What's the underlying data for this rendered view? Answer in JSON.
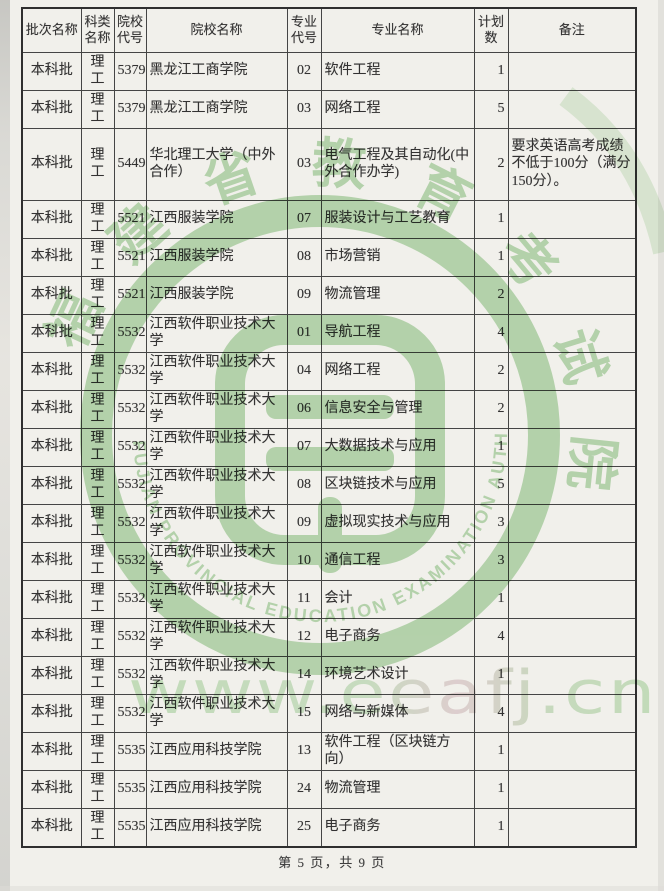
{
  "table": {
    "headers": [
      "批次名称",
      "科类名称",
      "院校代号",
      "院校名称",
      "专业代号",
      "专业名称",
      "计划数",
      "备注"
    ],
    "rows": [
      {
        "batch": "本科批",
        "category": "理工",
        "school_code": "5379",
        "school": "黑龙江工商学院",
        "major_code": "02",
        "major": "软件工程",
        "plan": "1",
        "note": ""
      },
      {
        "batch": "本科批",
        "category": "理工",
        "school_code": "5379",
        "school": "黑龙江工商学院",
        "major_code": "03",
        "major": "网络工程",
        "plan": "5",
        "note": ""
      },
      {
        "batch": "本科批",
        "category": "理工",
        "school_code": "5449",
        "school": "华北理工大学（中外合作）",
        "major_code": "03",
        "major": "电气工程及其自动化(中外合作办学)",
        "plan": "2",
        "note": "要求英语高考成绩不低于100分（满分150分）。"
      },
      {
        "batch": "本科批",
        "category": "理工",
        "school_code": "5521",
        "school": "江西服装学院",
        "major_code": "07",
        "major": "服装设计与工艺教育",
        "plan": "1",
        "note": ""
      },
      {
        "batch": "本科批",
        "category": "理工",
        "school_code": "5521",
        "school": "江西服装学院",
        "major_code": "08",
        "major": "市场营销",
        "plan": "1",
        "note": ""
      },
      {
        "batch": "本科批",
        "category": "理工",
        "school_code": "5521",
        "school": "江西服装学院",
        "major_code": "09",
        "major": "物流管理",
        "plan": "2",
        "note": ""
      },
      {
        "batch": "本科批",
        "category": "理工",
        "school_code": "5532",
        "school": "江西软件职业技术大学",
        "major_code": "01",
        "major": "导航工程",
        "plan": "4",
        "note": ""
      },
      {
        "batch": "本科批",
        "category": "理工",
        "school_code": "5532",
        "school": "江西软件职业技术大学",
        "major_code": "04",
        "major": "网络工程",
        "plan": "2",
        "note": ""
      },
      {
        "batch": "本科批",
        "category": "理工",
        "school_code": "5532",
        "school": "江西软件职业技术大学",
        "major_code": "06",
        "major": "信息安全与管理",
        "plan": "2",
        "note": ""
      },
      {
        "batch": "本科批",
        "category": "理工",
        "school_code": "5532",
        "school": "江西软件职业技术大学",
        "major_code": "07",
        "major": "大数据技术与应用",
        "plan": "1",
        "note": ""
      },
      {
        "batch": "本科批",
        "category": "理工",
        "school_code": "5532",
        "school": "江西软件职业技术大学",
        "major_code": "08",
        "major": "区块链技术与应用",
        "plan": "5",
        "note": ""
      },
      {
        "batch": "本科批",
        "category": "理工",
        "school_code": "5532",
        "school": "江西软件职业技术大学",
        "major_code": "09",
        "major": "虚拟现实技术与应用",
        "plan": "3",
        "note": ""
      },
      {
        "batch": "本科批",
        "category": "理工",
        "school_code": "5532",
        "school": "江西软件职业技术大学",
        "major_code": "10",
        "major": "通信工程",
        "plan": "3",
        "note": ""
      },
      {
        "batch": "本科批",
        "category": "理工",
        "school_code": "5532",
        "school": "江西软件职业技术大学",
        "major_code": "11",
        "major": "会计",
        "plan": "1",
        "note": ""
      },
      {
        "batch": "本科批",
        "category": "理工",
        "school_code": "5532",
        "school": "江西软件职业技术大学",
        "major_code": "12",
        "major": "电子商务",
        "plan": "4",
        "note": ""
      },
      {
        "batch": "本科批",
        "category": "理工",
        "school_code": "5532",
        "school": "江西软件职业技术大学",
        "major_code": "14",
        "major": "环境艺术设计",
        "plan": "1",
        "note": ""
      },
      {
        "batch": "本科批",
        "category": "理工",
        "school_code": "5532",
        "school": "江西软件职业技术大学",
        "major_code": "15",
        "major": "网络与新媒体",
        "plan": "4",
        "note": ""
      },
      {
        "batch": "本科批",
        "category": "理工",
        "school_code": "5535",
        "school": "江西应用科技学院",
        "major_code": "13",
        "major": "软件工程（区块链方向）",
        "plan": "1",
        "note": ""
      },
      {
        "batch": "本科批",
        "category": "理工",
        "school_code": "5535",
        "school": "江西应用科技学院",
        "major_code": "24",
        "major": "物流管理",
        "plan": "1",
        "note": ""
      },
      {
        "batch": "本科批",
        "category": "理工",
        "school_code": "5535",
        "school": "江西应用科技学院",
        "major_code": "25",
        "major": "电子商务",
        "plan": "1",
        "note": ""
      }
    ]
  },
  "footer": {
    "text": "第 5 页，共 9 页"
  },
  "watermark": {
    "url": "www.eeafj.cn",
    "seal_characters": [
      "福",
      "建",
      "省",
      "教",
      "育",
      "考",
      "试",
      "院"
    ],
    "seal_ring_text": "FUJIAN PROVINCIAL EDUCATION EXAMINATION AUTHORITY",
    "colors": {
      "seal_green": "#7fbd75",
      "url_green": "#a6d79c",
      "url_pink": "#d9bcc6"
    }
  }
}
